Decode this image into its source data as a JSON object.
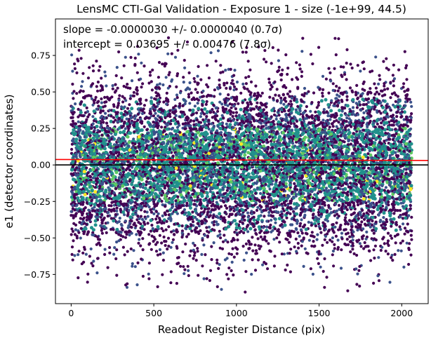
{
  "chart_data": {
    "type": "scatter",
    "title": "LensMC CTI-Gal Validation - Exposure 1 - size (-1e+99, 44.5)",
    "xlabel": "Readout Register Distance (pix)",
    "ylabel": "e1 (detector coordinates)",
    "xlim": [
      -95,
      2160
    ],
    "ylim": [
      -0.95,
      1.0
    ],
    "x_ticks": [
      0,
      500,
      1000,
      1500,
      2000
    ],
    "y_ticks": [
      -0.75,
      -0.5,
      -0.25,
      0.0,
      0.25,
      0.5,
      0.75
    ],
    "x_tick_labels": [
      "0",
      "500",
      "1000",
      "1500",
      "2000"
    ],
    "y_tick_labels": [
      "−0.75",
      "−0.50",
      "−0.25",
      "0.00",
      "0.25",
      "0.50",
      "0.75"
    ],
    "grid": false,
    "annotations": [
      {
        "text": "slope = -0.0000030 +/- 0.0000040 (0.7σ)"
      },
      {
        "text": "intercept = 0.03695 +/- 0.00476 (7.8σ)"
      }
    ],
    "scatter": {
      "x_range": [
        0,
        2060
      ],
      "y_center": 0.0,
      "y_spread": 0.28,
      "y_min": -0.88,
      "y_max": 0.88,
      "point_count": 9000,
      "colormap": [
        "#440154",
        "#3b528b",
        "#21918c",
        "#5ec962",
        "#fde725"
      ]
    },
    "lines": [
      {
        "name": "fit",
        "slope": -3e-06,
        "intercept": 0.03695,
        "color": "#ff0000"
      },
      {
        "name": "zero",
        "slope": 0.0,
        "intercept": 0.0,
        "color": "#000000"
      }
    ]
  }
}
